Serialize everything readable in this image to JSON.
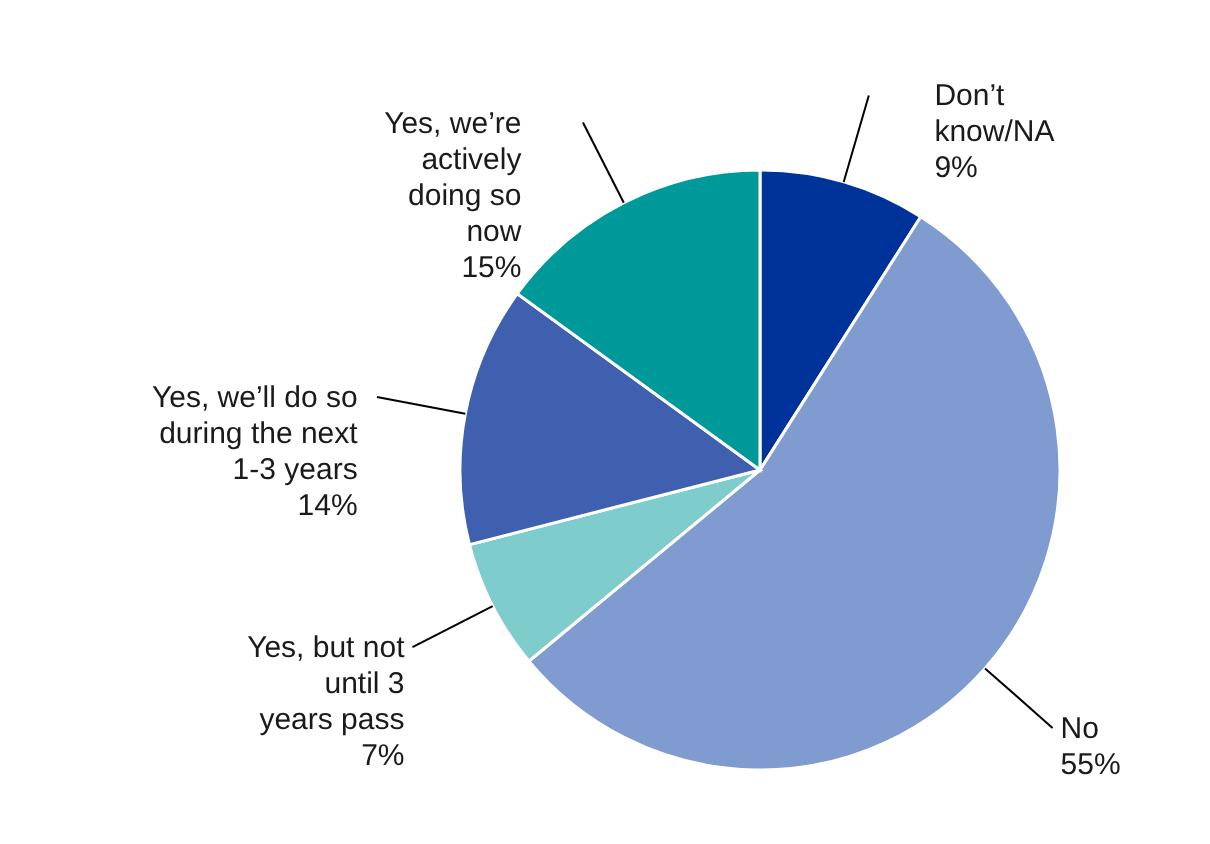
{
  "chart_data": {
    "type": "pie",
    "categories": [
      "Don’t know/NA",
      "No",
      "Yes, but not until 3 years pass",
      "Yes, we’ll do so during the next 1-3 years",
      "Yes, we’re actively doing so now"
    ],
    "values": [
      9,
      55,
      7,
      14,
      15
    ],
    "colors": [
      "#00339a",
      "#7f9bcf",
      "#7fcccc",
      "#3f5faf",
      "#009999"
    ],
    "value_labels": [
      "9%",
      "55%",
      "7%",
      "14%",
      "15%"
    ]
  }
}
